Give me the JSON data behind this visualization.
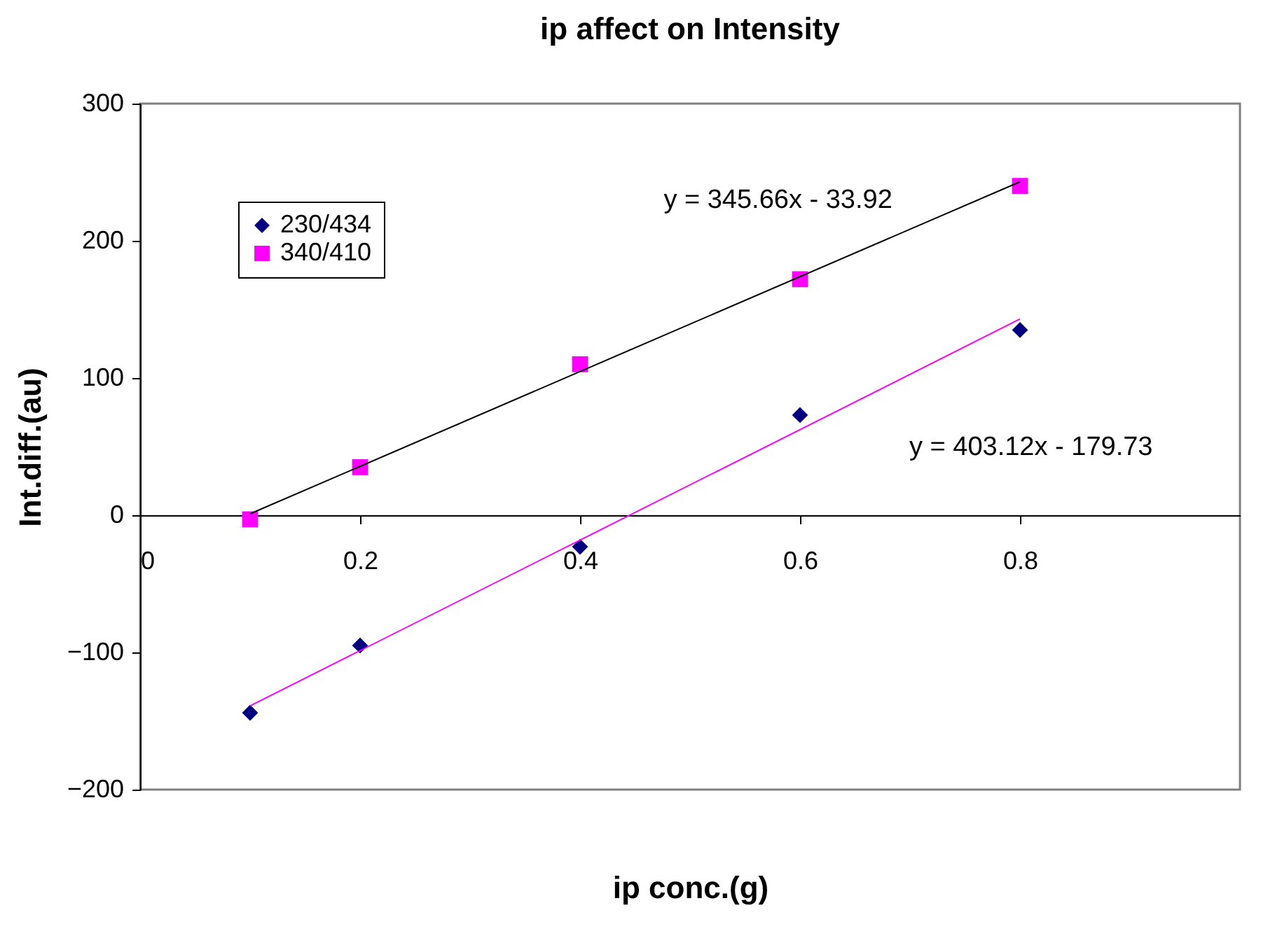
{
  "chart_data": {
    "type": "scatter",
    "title": "ip affect on Intensity",
    "xlabel": "ip conc.(g)",
    "ylabel": "Int.diff.(au)",
    "xlim": [
      0,
      1
    ],
    "xticks": [
      0,
      0.2,
      0.4,
      0.6,
      0.8
    ],
    "ylim": [
      -200,
      300
    ],
    "yticks": [
      -200,
      -100,
      0,
      100,
      200,
      300
    ],
    "grid": false,
    "legend": "top left",
    "series": [
      {
        "name": "230/434",
        "color": "#000080",
        "marker": "diamond",
        "x": [
          0.1,
          0.2,
          0.4,
          0.6,
          0.8
        ],
        "values": [
          -144,
          -95,
          -23,
          73,
          135
        ]
      },
      {
        "name": "340/410",
        "color": "#ff00ff",
        "marker": "square",
        "x": [
          0.1,
          0.2,
          0.4,
          0.6,
          0.8
        ],
        "values": [
          -3,
          35,
          110,
          172,
          240
        ]
      },
      {
        "type": "line",
        "color": "#000000",
        "marker": "none",
        "x": [
          0.1,
          0.8
        ],
        "values": [
          1,
          243
        ]
      },
      {
        "type": "line",
        "color": "#ff00ff",
        "marker": "none",
        "x": [
          0.1,
          0.8
        ],
        "values": [
          -139,
          143
        ]
      }
    ],
    "annotations": [
      "y = 345.66x - 33.92",
      "y = 403.12x - 179.73"
    ]
  }
}
